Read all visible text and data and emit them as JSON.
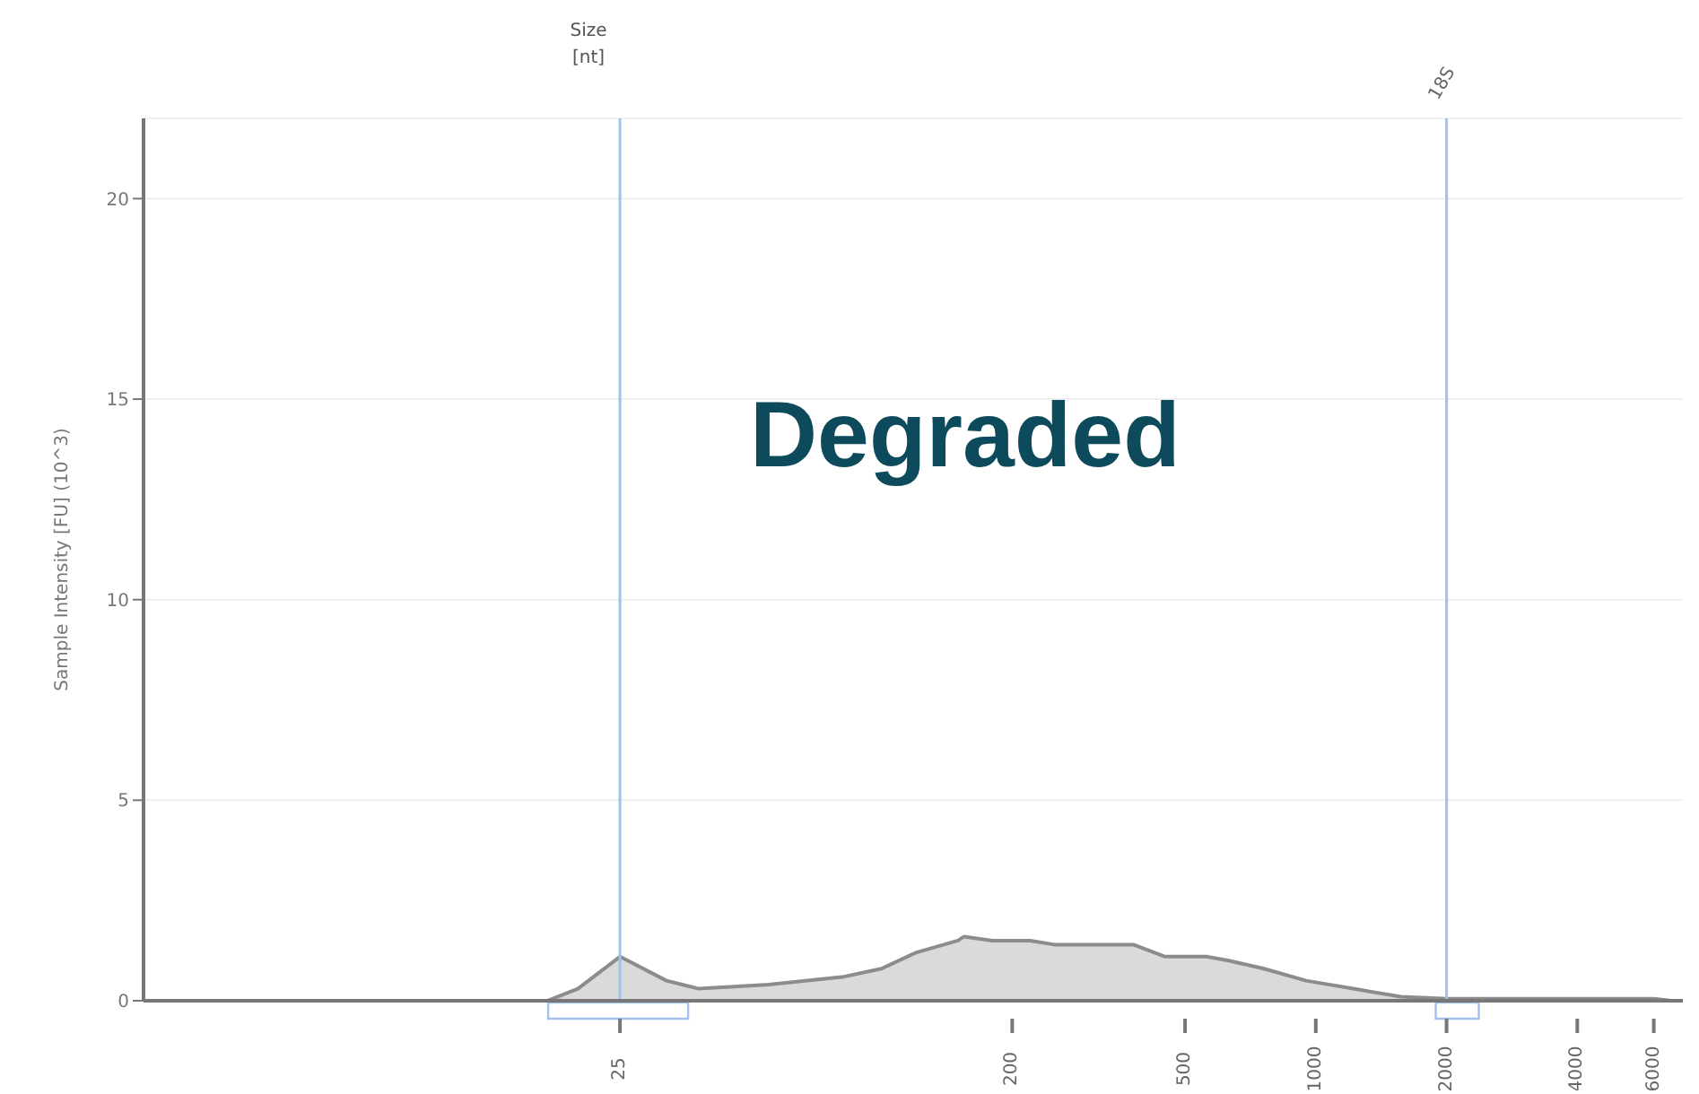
{
  "chart_data": {
    "type": "area",
    "xlabel": "Size [nt]",
    "ylabel": "Sample Intensity [FU] (10^3)",
    "log": "x",
    "xlim": [
      2,
      7000
    ],
    "xticks": [
      25,
      200,
      500,
      1000,
      2000,
      4000,
      6000
    ],
    "ylim": [
      0,
      22
    ],
    "yticks": [
      0,
      5,
      10,
      15,
      20
    ],
    "grid": "y",
    "x": [
      17,
      20,
      25,
      32,
      38,
      55,
      82,
      100,
      120,
      150,
      155,
      180,
      220,
      250,
      280,
      380,
      450,
      560,
      630,
      760,
      950,
      1220,
      1570,
      2000,
      6000,
      6600
    ],
    "series": [
      {
        "color": "#8c8c8c",
        "values": [
          0,
          0.3,
          1.1,
          0.5,
          0.3,
          0.4,
          0.6,
          0.8,
          1.2,
          1.5,
          1.6,
          1.5,
          1.5,
          1.4,
          1.4,
          1.4,
          1.1,
          1.1,
          1.0,
          0.8,
          0.5,
          0.3,
          0.1,
          0.05,
          0.05,
          0
        ]
      }
    ],
    "ref_lines": [
      {
        "axis": "x",
        "value": 25,
        "color": "#9fc3ee"
      },
      {
        "axis": "x",
        "value": 2000,
        "label": "18S",
        "color": "#9fc3ee"
      }
    ],
    "annotations": [
      "Degraded"
    ]
  }
}
